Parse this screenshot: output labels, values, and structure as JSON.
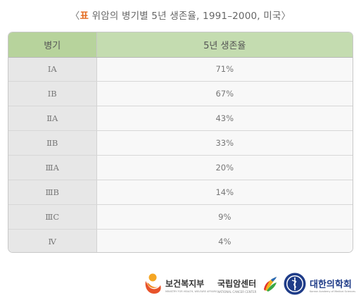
{
  "caption": {
    "open": "〈",
    "tag": "표",
    "text": "위암의 병기별 5년 생존율, 1991–2000, 미국",
    "close": "〉"
  },
  "table": {
    "headers": [
      "병기",
      "5년 생존율"
    ],
    "rows": [
      {
        "stage": "ⅠA",
        "rate": "71%"
      },
      {
        "stage": "ⅠB",
        "rate": "67%"
      },
      {
        "stage": "ⅡA",
        "rate": "43%"
      },
      {
        "stage": "ⅡB",
        "rate": "33%"
      },
      {
        "stage": "ⅢA",
        "rate": "20%"
      },
      {
        "stage": "ⅢB",
        "rate": "14%"
      },
      {
        "stage": "ⅢC",
        "rate": "9%"
      },
      {
        "stage": "Ⅳ",
        "rate": "4%"
      }
    ]
  },
  "logos": {
    "mohw": {
      "name": "보건복지부",
      "sub": "MINISTRY FOR HEALTH, WELFARE AFFAIRS"
    },
    "ncc": {
      "name": "국립암센터",
      "sub": "NATIONAL CANCER CENTER"
    },
    "kams": {
      "name": "대한의학회",
      "sub": "Korean Academy of Medical Sciences"
    }
  },
  "colors": {
    "caption_tag": "#e46a1e",
    "header_stage_bg": "#b7d39c",
    "header_rate_bg": "#c4dcb0",
    "stage_cell_bg": "#e7e7e7",
    "value_cell_bg": "#f8f8f8"
  }
}
